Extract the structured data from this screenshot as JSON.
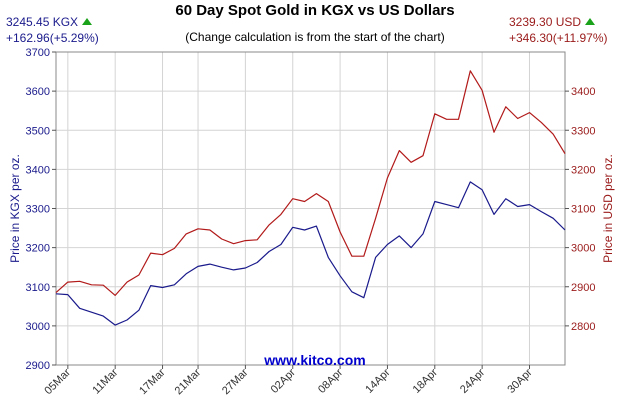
{
  "header": {
    "left_price": "3245.45 KGX",
    "left_change": "+162.96(+5.29%)",
    "right_price": "3239.30 USD",
    "right_change": "+346.30(+11.97%)",
    "title": "60 Day Spot Gold in KGX vs US Dollars",
    "subtitle": "(Change calculation is from the start of the chart)",
    "up_icon": "triangle-up-icon",
    "up_color": "#1aa31a"
  },
  "footer": {
    "site": "www.kitco.com"
  },
  "chart_data": {
    "type": "line",
    "xlabel": "",
    "ylabel_left": "Price in KGX per oz.",
    "ylabel_right": "Price in USD per oz.",
    "ylim_left": [
      2900,
      3700
    ],
    "ylim_right": [
      2700,
      3500
    ],
    "yticks_left": [
      "2900",
      "3000",
      "3100",
      "3200",
      "3300",
      "3400",
      "3500",
      "3600",
      "3700"
    ],
    "yticks_right": [
      "2800",
      "2900",
      "3000",
      "3100",
      "3200",
      "3300",
      "3400"
    ],
    "x_tick_labels": [
      "05Mar",
      "11Mar",
      "17Mar",
      "21Mar",
      "27Mar",
      "02Apr",
      "08Apr",
      "14Apr",
      "18Apr",
      "24Apr",
      "30Apr"
    ],
    "x_tick_index": [
      1,
      5,
      9,
      12,
      16,
      20,
      24,
      28,
      32,
      36,
      40
    ],
    "grid": true,
    "series": [
      {
        "name": "KGX",
        "axis": "left",
        "color": "#1a1a8c",
        "values": [
          3082,
          3080,
          3045,
          3035,
          3025,
          3002,
          3015,
          3040,
          3103,
          3098,
          3105,
          3133,
          3152,
          3158,
          3150,
          3143,
          3148,
          3162,
          3190,
          3208,
          3252,
          3245,
          3255,
          3175,
          3128,
          3087,
          3072,
          3175,
          3208,
          3230,
          3200,
          3235,
          3318,
          3310,
          3302,
          3368,
          3348,
          3285,
          3325,
          3305,
          3310,
          3292,
          3275,
          3245
        ]
      },
      {
        "name": "USD",
        "axis": "right",
        "color": "#b21a1a",
        "values": [
          2885,
          2912,
          2914,
          2905,
          2904,
          2878,
          2912,
          2930,
          2986,
          2982,
          2998,
          3035,
          3048,
          3045,
          3022,
          3010,
          3018,
          3020,
          3058,
          3085,
          3125,
          3118,
          3138,
          3118,
          3040,
          2978,
          2978,
          3075,
          3178,
          3248,
          3218,
          3235,
          3342,
          3328,
          3328,
          3452,
          3402,
          3295,
          3360,
          3330,
          3345,
          3320,
          3290,
          3240
        ]
      }
    ]
  }
}
